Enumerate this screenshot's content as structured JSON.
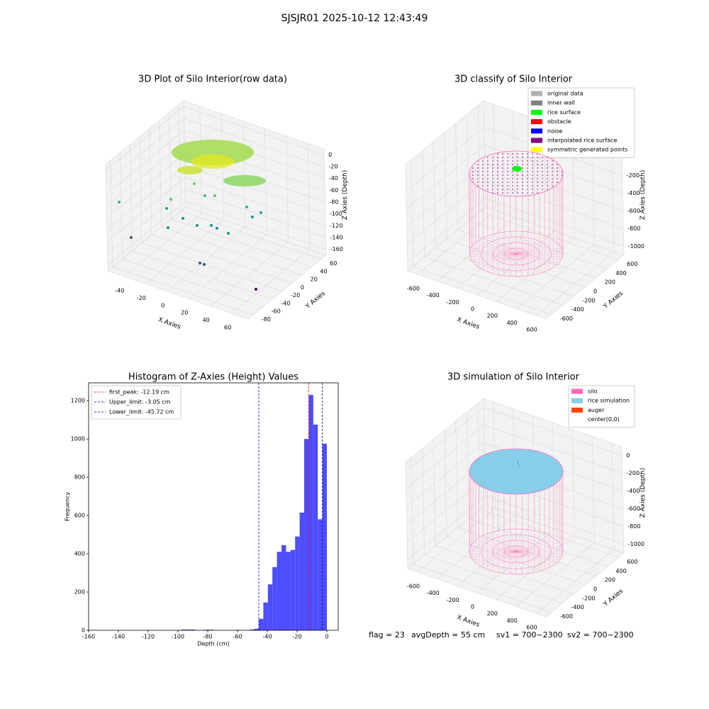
{
  "title": "SJSJR01 2025-10-12 12:43:49",
  "chart_data": [
    {
      "type": "scatter3d",
      "title": "3D Plot of Silo Interior(row data)",
      "xlabel": "X Axies",
      "ylabel": "Y Axies",
      "zlabel": "Z Axies (Depth)",
      "xlim": [
        -55,
        75
      ],
      "ylim": [
        -90,
        70
      ],
      "zlim": [
        -170,
        10
      ],
      "xticks": [
        -40,
        -20,
        0,
        20,
        40,
        60
      ],
      "yticks": [
        -80,
        -60,
        -40,
        -20,
        0,
        20,
        40,
        60
      ],
      "zticks": [
        0,
        -20,
        -40,
        -60,
        -80,
        -100,
        -120,
        -140,
        -160
      ]
    },
    {
      "type": "cylinder3d",
      "title": "3D classify of Silo Interior",
      "xlabel": "X Axies",
      "ylabel": "Y Axies",
      "zlabel": "Z Axies (Depth)",
      "xlim": [
        -700,
        700
      ],
      "ylim": [
        -700,
        700
      ],
      "zlim": [
        -1100,
        100
      ],
      "xticks": [
        -600,
        -400,
        -200,
        0,
        200,
        400,
        600
      ],
      "yticks": [
        -600,
        -400,
        -200,
        0,
        200,
        400,
        600
      ],
      "zticks": [
        -200,
        -400,
        -600,
        -800,
        -1000
      ],
      "legend": [
        {
          "name": "original data",
          "color": "#b0b0b0"
        },
        {
          "name": "inner wall",
          "color": "#808080"
        },
        {
          "name": "rice surface",
          "color": "#00ff00"
        },
        {
          "name": "obstacle",
          "color": "#ff0000"
        },
        {
          "name": "noise",
          "color": "#0000ff"
        },
        {
          "name": "interpolated rice surface",
          "color": "#800080"
        },
        {
          "name": "symmetric generated points",
          "color": "#ffff00"
        }
      ]
    },
    {
      "type": "histogram",
      "title": "Histogram of Z-Axies (Height) Values",
      "xlabel": "Depth (cm)",
      "ylabel": "Frequency",
      "color": "#4d4dff",
      "bins": [
        -100.58,
        -97.54,
        -94.49,
        -91.44,
        -88.39,
        -85.34,
        -82.3,
        -79.25,
        -76.2,
        -73.15,
        -70.1,
        -67.06,
        -64.01,
        -60.96,
        -57.91,
        -54.86,
        -51.82,
        -48.77,
        -45.72,
        -42.67,
        -39.62,
        -36.58,
        -33.53,
        -30.48,
        -27.43,
        -24.38,
        -21.34,
        -18.29,
        -15.24,
        -12.19,
        -9.14,
        -6.1,
        -3.05,
        0
      ],
      "counts": [
        0,
        4,
        4,
        4,
        0,
        0,
        3,
        3,
        0,
        0,
        0,
        0,
        0,
        2,
        0,
        0,
        4,
        8,
        60,
        145,
        240,
        330,
        410,
        445,
        410,
        420,
        490,
        615,
        1000,
        1230,
        1075,
        580,
        975
      ],
      "xlim": [
        -160,
        7.6
      ],
      "ylim": [
        0,
        1293
      ],
      "xticks": [
        -160,
        -140,
        -120,
        -100,
        -80,
        -60,
        -40,
        -20,
        0
      ],
      "yticks": [
        0,
        200,
        400,
        600,
        800,
        1000,
        1200
      ],
      "vlines": [
        {
          "label": "first_peak: -12.19 cm",
          "value": -12.19,
          "color": "#ff0000"
        },
        {
          "label": "Upper_limit: -3.05 cm",
          "value": -3.05,
          "color": "#00008b"
        },
        {
          "label": "Lower_limit: -45.72 cm",
          "value": -45.72,
          "color": "#0000ff"
        }
      ]
    },
    {
      "type": "cylinder3d",
      "title": "3D simulation of Silo Interior",
      "xlabel": "X Axies",
      "ylabel": "Y Axies",
      "zlabel": "Z Axies (Depth)",
      "xlim": [
        -700,
        700
      ],
      "ylim": [
        -700,
        700
      ],
      "zlim": [
        -1100,
        100
      ],
      "xticks": [
        -600,
        -400,
        -200,
        0,
        200,
        400,
        600
      ],
      "yticks": [
        -600,
        -400,
        -200,
        0,
        200,
        400,
        600
      ],
      "zticks": [
        0,
        -200,
        -400,
        -600,
        -800,
        -1000
      ],
      "legend": [
        {
          "name": "silo",
          "color": "#ff69b4"
        },
        {
          "name": "rice simulation",
          "color": "#87ceeb"
        },
        {
          "name": "auger",
          "color": "#ff4500"
        },
        {
          "name": "center(0,0)",
          "color": "#ffffff"
        }
      ]
    }
  ],
  "status": [
    "flag = 23",
    "avgDepth = 55 cm",
    "sv1 = 700~2300",
    "sv2 = 700~2300"
  ]
}
